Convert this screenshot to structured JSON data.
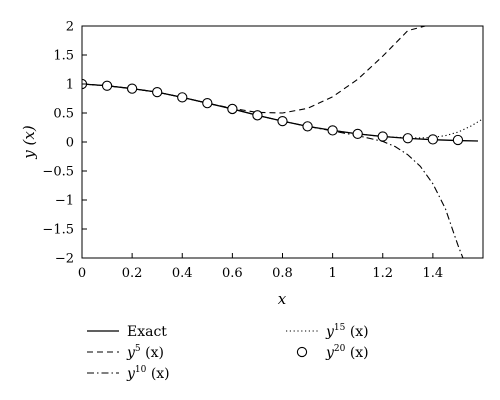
{
  "chart_data": {
    "type": "line",
    "xlabel": "x",
    "ylabel": "y (x)",
    "xlim": [
      0,
      1.6
    ],
    "ylim": [
      -2,
      2
    ],
    "x_ticks": [
      0,
      0.2,
      0.4,
      0.6,
      0.8,
      1.0,
      1.2,
      1.4
    ],
    "x_tick_labels": [
      "0",
      "0.2",
      "0.4",
      "0.6",
      "0.8",
      "1",
      "1.2",
      "1.4"
    ],
    "y_ticks": [
      2,
      1.5,
      1,
      0.5,
      0,
      -0.5,
      -1,
      -1.5,
      -2
    ],
    "y_tick_labels": [
      "2",
      "1.5",
      "1",
      "0.5",
      "0",
      "−0.5",
      "−1",
      "−1.5",
      "−2"
    ],
    "grid": false,
    "legend_placement": "below",
    "series": [
      {
        "name": "Exact",
        "style": "solid",
        "x": [
          0,
          0.1,
          0.2,
          0.3,
          0.4,
          0.5,
          0.6,
          0.7,
          0.8,
          0.9,
          1.0,
          1.1,
          1.2,
          1.3,
          1.4,
          1.5,
          1.58
        ],
        "y": [
          1.0,
          0.97,
          0.92,
          0.86,
          0.77,
          0.67,
          0.57,
          0.46,
          0.36,
          0.27,
          0.2,
          0.14,
          0.095,
          0.063,
          0.04,
          0.025,
          0.017
        ]
      },
      {
        "name": "y5 (x)",
        "name_base": "y",
        "name_sup": "5",
        "name_arg": " (x)",
        "style": "dashed",
        "x": [
          0,
          0.1,
          0.2,
          0.3,
          0.4,
          0.5,
          0.6,
          0.7,
          0.8,
          0.9,
          1.0,
          1.1,
          1.2,
          1.3,
          1.37
        ],
        "y": [
          1.0,
          0.97,
          0.92,
          0.86,
          0.77,
          0.67,
          0.58,
          0.51,
          0.5,
          0.58,
          0.78,
          1.08,
          1.48,
          1.92,
          2.0
        ]
      },
      {
        "name": "y10 (x)",
        "name_base": "y",
        "name_sup": "10",
        "name_arg": " (x)",
        "style": "dashdot",
        "x": [
          0,
          0.1,
          0.2,
          0.3,
          0.4,
          0.5,
          0.6,
          0.7,
          0.8,
          0.9,
          1.0,
          1.1,
          1.2,
          1.25,
          1.3,
          1.35,
          1.4,
          1.45,
          1.5,
          1.52
        ],
        "y": [
          1.0,
          0.97,
          0.92,
          0.86,
          0.77,
          0.67,
          0.57,
          0.46,
          0.36,
          0.27,
          0.19,
          0.11,
          0.01,
          -0.08,
          -0.22,
          -0.42,
          -0.72,
          -1.15,
          -1.78,
          -2.0
        ]
      },
      {
        "name": "y15 (x)",
        "name_base": "y",
        "name_sup": "15",
        "name_arg": " (x)",
        "style": "dotted",
        "x": [
          0,
          0.1,
          0.2,
          0.3,
          0.4,
          0.5,
          0.6,
          0.7,
          0.8,
          0.9,
          1.0,
          1.1,
          1.2,
          1.3,
          1.35,
          1.4,
          1.45,
          1.5,
          1.55,
          1.6
        ],
        "y": [
          1.0,
          0.97,
          0.92,
          0.86,
          0.77,
          0.67,
          0.57,
          0.46,
          0.36,
          0.27,
          0.2,
          0.14,
          0.095,
          0.07,
          0.07,
          0.08,
          0.11,
          0.17,
          0.27,
          0.4
        ]
      },
      {
        "name": "y20 (x)",
        "name_base": "y",
        "name_sup": "20",
        "name_arg": " (x)",
        "style": "circles",
        "x": [
          0,
          0.1,
          0.2,
          0.3,
          0.4,
          0.5,
          0.6,
          0.7,
          0.8,
          0.9,
          1.0,
          1.1,
          1.2,
          1.3,
          1.4,
          1.5
        ],
        "y": [
          1.0,
          0.97,
          0.92,
          0.86,
          0.77,
          0.67,
          0.57,
          0.46,
          0.36,
          0.27,
          0.2,
          0.14,
          0.095,
          0.065,
          0.045,
          0.035
        ]
      }
    ]
  }
}
